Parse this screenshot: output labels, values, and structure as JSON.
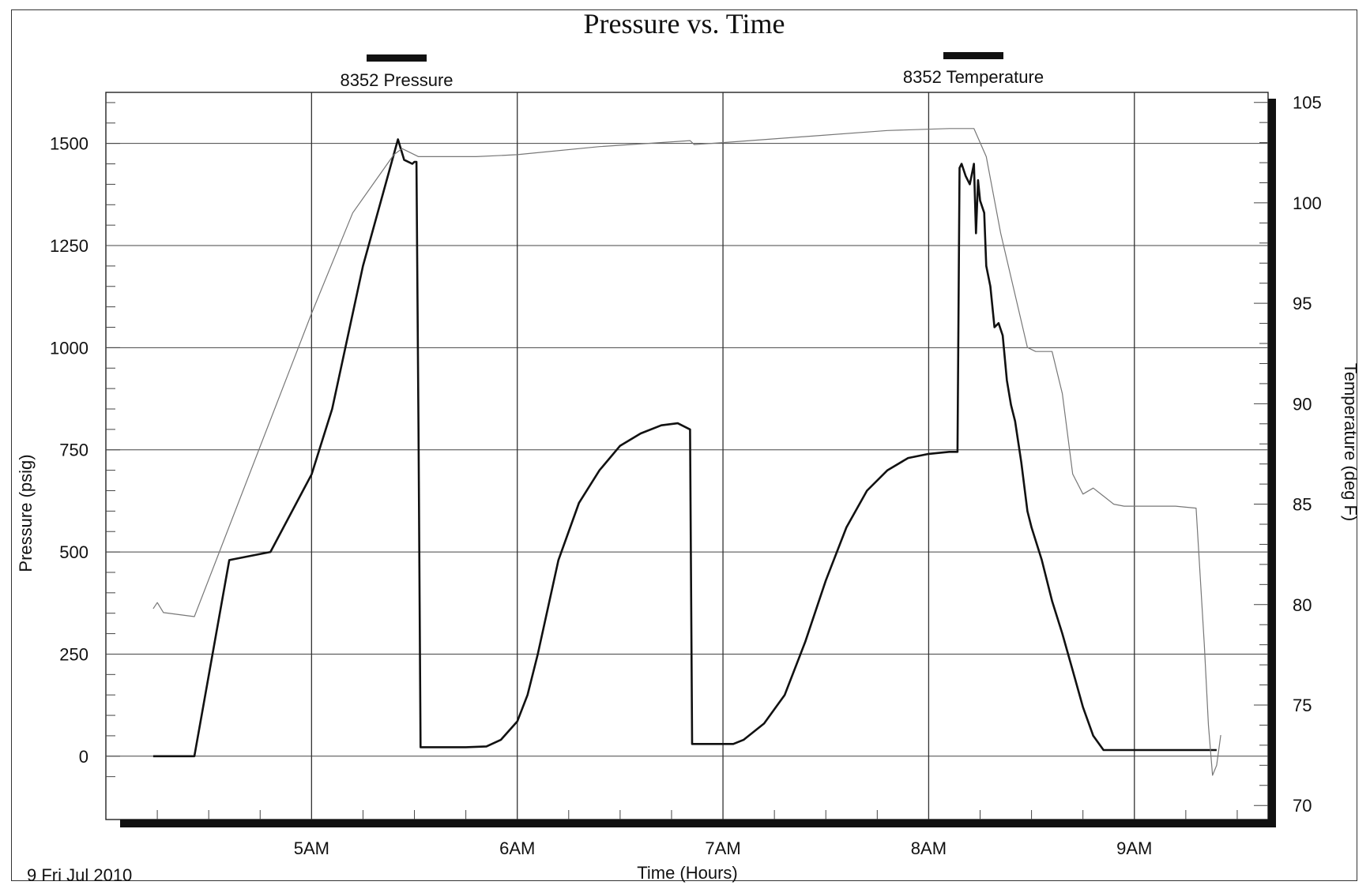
{
  "chart_data": {
    "type": "line",
    "title": "Pressure vs. Time",
    "xlabel": "Time (Hours)",
    "ylabel": "Pressure (psig)",
    "y2label": "Temperature (deg F)",
    "date_label": "9 Fri Jul 2010",
    "xlim": [
      4.0,
      9.65
    ],
    "ylim": [
      -155,
      1625
    ],
    "y2lim": [
      69.3,
      105.5
    ],
    "x_ticks": [
      {
        "v": 5,
        "label": "5AM"
      },
      {
        "v": 6,
        "label": "6AM"
      },
      {
        "v": 7,
        "label": "7AM"
      },
      {
        "v": 8,
        "label": "8AM"
      },
      {
        "v": 9,
        "label": "9AM"
      }
    ],
    "y_ticks": [
      {
        "v": 0,
        "label": "0"
      },
      {
        "v": 250,
        "label": "250"
      },
      {
        "v": 500,
        "label": "500"
      },
      {
        "v": 750,
        "label": "750"
      },
      {
        "v": 1000,
        "label": "1000"
      },
      {
        "v": 1250,
        "label": "1250"
      },
      {
        "v": 1500,
        "label": "1500"
      }
    ],
    "y2_ticks": [
      {
        "v": 70,
        "label": "70"
      },
      {
        "v": 75,
        "label": "75"
      },
      {
        "v": 80,
        "label": "80"
      },
      {
        "v": 85,
        "label": "85"
      },
      {
        "v": 90,
        "label": "90"
      },
      {
        "v": 95,
        "label": "95"
      },
      {
        "v": 100,
        "label": "100"
      },
      {
        "v": 105,
        "label": "105"
      }
    ],
    "grid": true,
    "legend_position": "top",
    "series": [
      {
        "name": "8352 Pressure",
        "axis": "left",
        "color": "#111111",
        "width": 2.6,
        "x": [
          4.23,
          4.43,
          4.6,
          4.8,
          5.0,
          5.1,
          5.25,
          5.42,
          5.45,
          5.49,
          5.5,
          5.51,
          5.52,
          5.53,
          5.75,
          5.85,
          5.92,
          6.0,
          6.05,
          6.1,
          6.2,
          6.3,
          6.4,
          6.5,
          6.6,
          6.7,
          6.78,
          6.84,
          6.85,
          6.86,
          6.9,
          6.95,
          7.05,
          7.1,
          7.2,
          7.3,
          7.4,
          7.5,
          7.6,
          7.7,
          7.8,
          7.9,
          8.0,
          8.1,
          8.14,
          8.15,
          8.16,
          8.18,
          8.2,
          8.22,
          8.23,
          8.24,
          8.25,
          8.27,
          8.28,
          8.3,
          8.32,
          8.34,
          8.36,
          8.38,
          8.4,
          8.42,
          8.45,
          8.48,
          8.5,
          8.55,
          8.6,
          8.65,
          8.7,
          8.75,
          8.8,
          8.85,
          8.9,
          8.93,
          8.95,
          9.0,
          9.2,
          9.4
        ],
        "y": [
          0,
          0,
          480,
          500,
          690,
          850,
          1200,
          1510,
          1460,
          1450,
          1455,
          1455,
          800,
          22,
          22,
          24,
          40,
          85,
          150,
          250,
          480,
          620,
          700,
          760,
          790,
          810,
          815,
          800,
          30,
          30,
          30,
          30,
          30,
          40,
          80,
          150,
          280,
          430,
          560,
          650,
          700,
          730,
          740,
          745,
          745,
          1440,
          1450,
          1420,
          1400,
          1450,
          1280,
          1410,
          1360,
          1330,
          1200,
          1150,
          1050,
          1060,
          1030,
          920,
          860,
          820,
          720,
          600,
          560,
          480,
          380,
          300,
          210,
          120,
          50,
          15,
          15,
          15,
          15,
          15,
          15,
          15
        ]
      },
      {
        "name": "8352 Temperature",
        "axis": "right",
        "color": "#777777",
        "width": 1.2,
        "x": [
          4.23,
          4.25,
          4.28,
          4.43,
          5.0,
          5.2,
          5.4,
          5.44,
          5.48,
          5.52,
          5.8,
          6.0,
          6.4,
          6.84,
          6.86,
          7.0,
          7.4,
          7.8,
          8.1,
          8.22,
          8.28,
          8.35,
          8.4,
          8.48,
          8.52,
          8.6,
          8.65,
          8.7,
          8.75,
          8.8,
          8.85,
          8.9,
          8.95,
          9.0,
          9.2,
          9.3,
          9.34,
          9.36,
          9.38,
          9.4,
          9.42
        ],
        "y": [
          79.8,
          80.1,
          79.6,
          79.4,
          94.5,
          99.5,
          102.4,
          102.7,
          102.5,
          102.3,
          102.3,
          102.4,
          102.8,
          103.1,
          102.9,
          103.0,
          103.3,
          103.6,
          103.7,
          103.7,
          102.3,
          98.5,
          96.3,
          92.8,
          92.6,
          92.6,
          90.5,
          86.5,
          85.5,
          85.8,
          85.4,
          85.0,
          84.9,
          84.9,
          84.9,
          84.8,
          78.0,
          74.0,
          71.5,
          72.0,
          73.5
        ]
      }
    ]
  }
}
